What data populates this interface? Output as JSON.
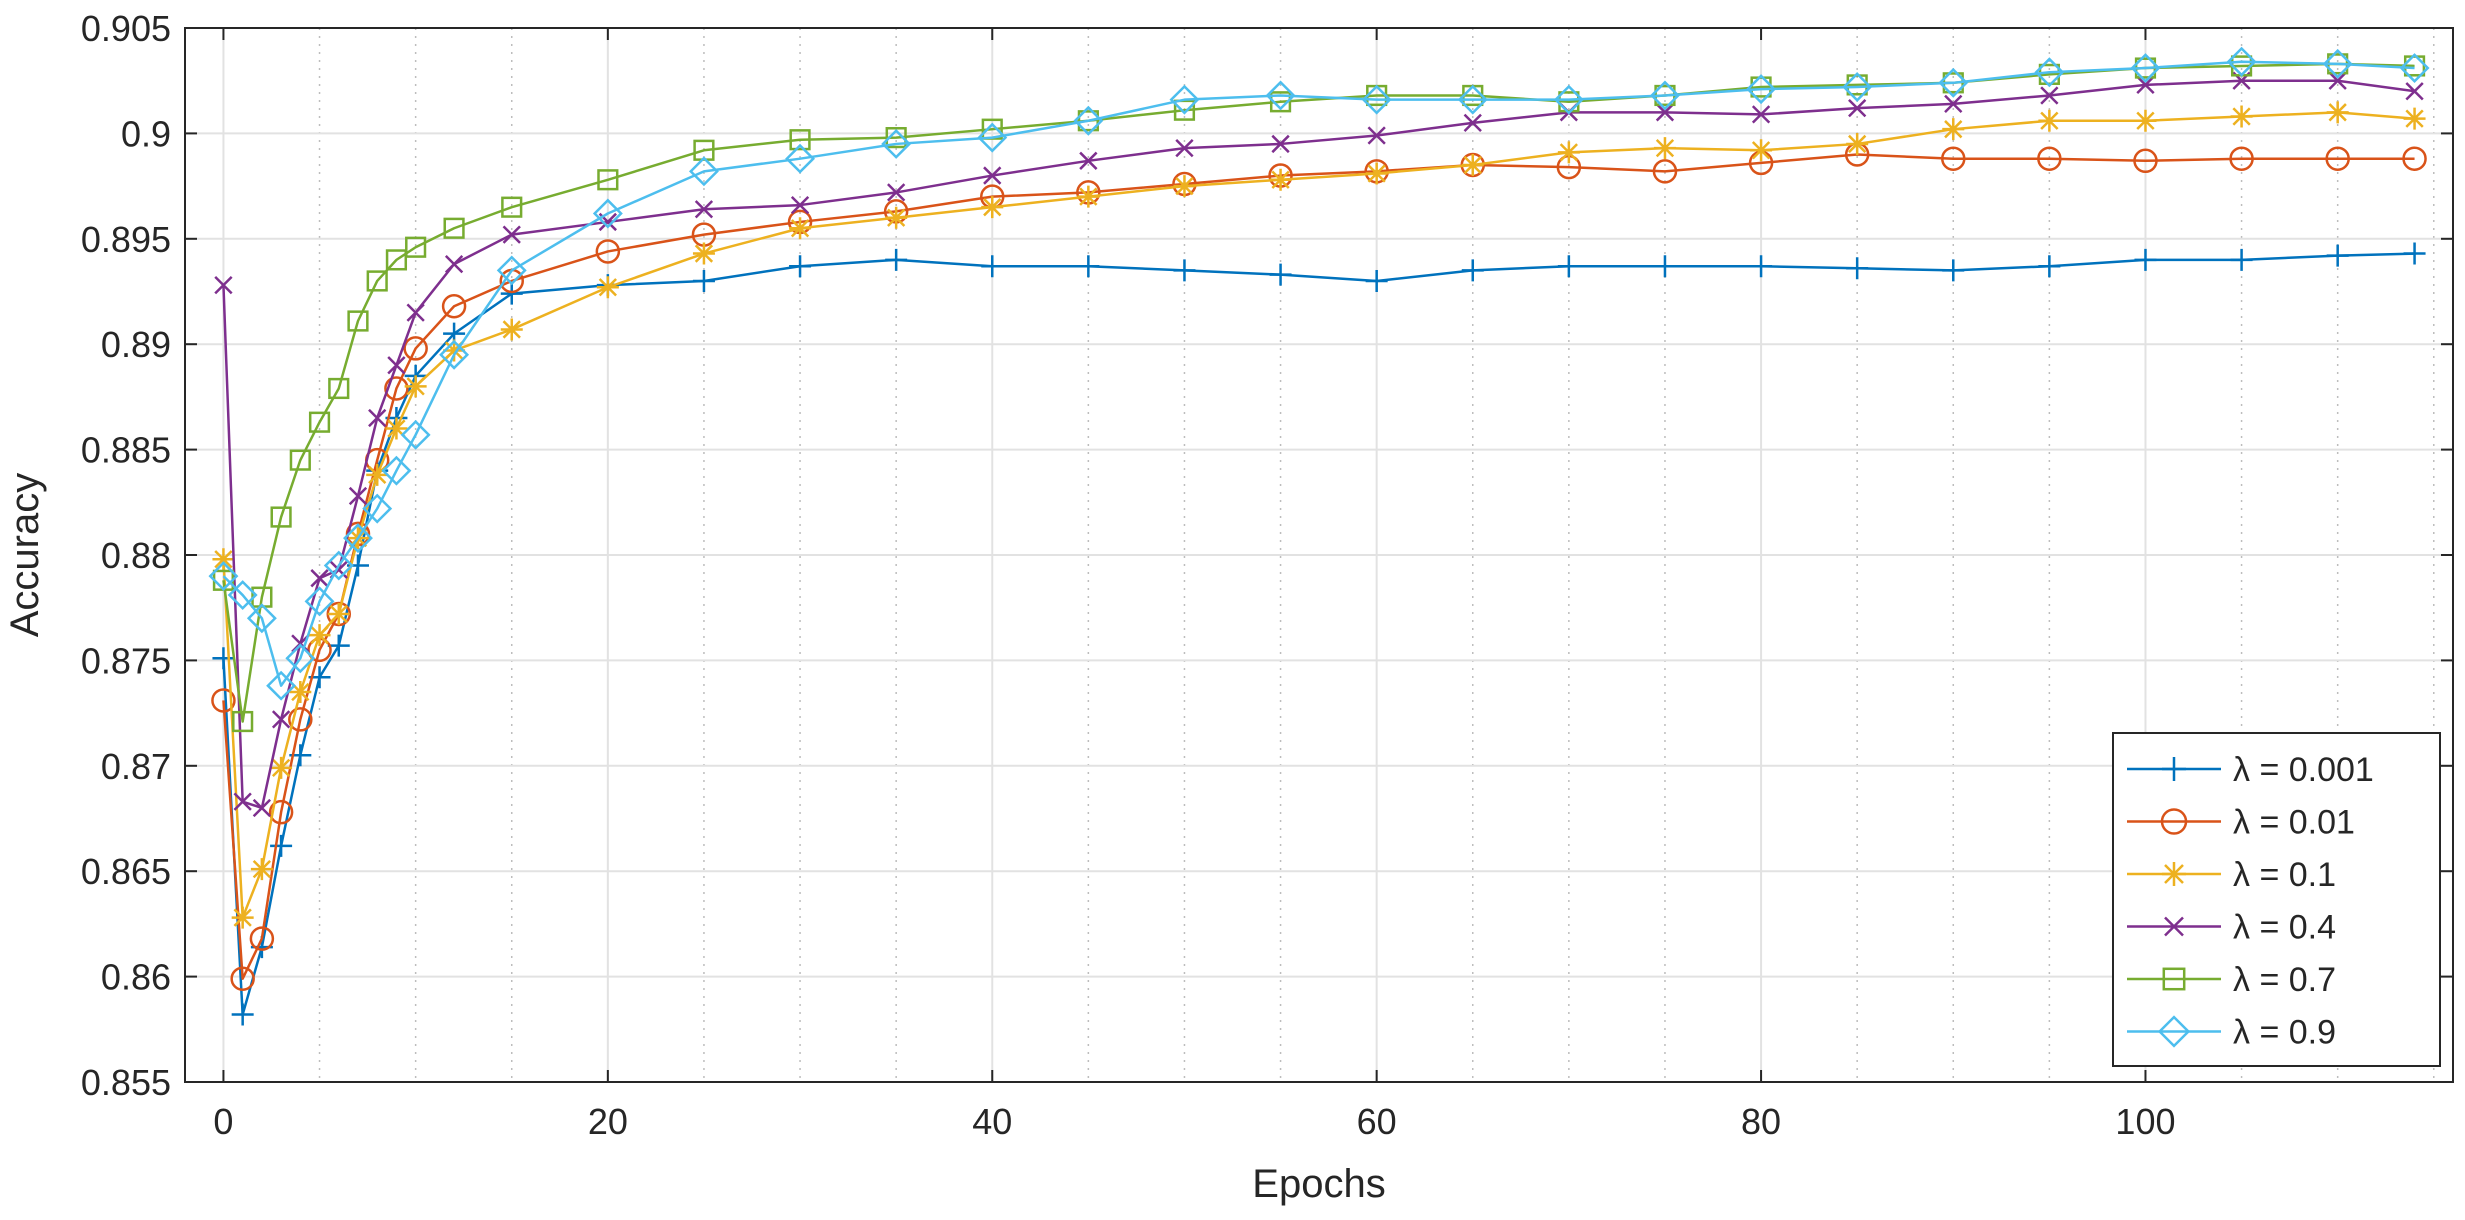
{
  "chart_data": {
    "type": "line",
    "title": "",
    "xlabel": "Epochs",
    "ylabel": "Accuracy",
    "xlim": [
      -2,
      116
    ],
    "ylim": [
      0.855,
      0.905
    ],
    "x_ticks": [
      0,
      20,
      40,
      60,
      80,
      100
    ],
    "x_tick_labels": [
      "0",
      "20",
      "40",
      "60",
      "80",
      "100"
    ],
    "y_ticks": [
      0.855,
      0.86,
      0.865,
      0.87,
      0.875,
      0.88,
      0.885,
      0.89,
      0.895,
      0.9,
      0.905
    ],
    "y_tick_labels": [
      "0.855",
      "0.86",
      "0.865",
      "0.87",
      "0.875",
      "0.88",
      "0.885",
      "0.89",
      "0.895",
      "0.9",
      "0.905"
    ],
    "x_minor_step": 5,
    "grid": true,
    "legend_position": "bottom-right",
    "x": [
      0,
      1,
      2,
      3,
      4,
      5,
      6,
      7,
      8,
      9,
      10,
      12,
      15,
      20,
      25,
      30,
      35,
      40,
      45,
      50,
      55,
      60,
      65,
      70,
      75,
      80,
      85,
      90,
      95,
      100,
      105,
      110,
      114
    ],
    "series": [
      {
        "name": "λ = 0.001",
        "marker": "plus",
        "color": "#0072BD",
        "values": [
          0.8751,
          0.8582,
          0.8614,
          0.8662,
          0.8705,
          0.8742,
          0.8757,
          0.8795,
          0.884,
          0.8865,
          0.8885,
          0.8905,
          0.8924,
          0.8928,
          0.893,
          0.8937,
          0.894,
          0.8937,
          0.8937,
          0.8935,
          0.8933,
          0.893,
          0.8935,
          0.8937,
          0.8937,
          0.8937,
          0.8936,
          0.8935,
          0.8937,
          0.894,
          0.894,
          0.8942,
          0.8943
        ]
      },
      {
        "name": "λ = 0.01",
        "marker": "circle",
        "color": "#D95319",
        "values": [
          0.8731,
          0.8599,
          0.8618,
          0.8678,
          0.8722,
          0.8755,
          0.8772,
          0.881,
          0.8845,
          0.8879,
          0.8898,
          0.8918,
          0.893,
          0.8944,
          0.8952,
          0.8958,
          0.8963,
          0.897,
          0.8972,
          0.8976,
          0.898,
          0.8982,
          0.8985,
          0.8984,
          0.8982,
          0.8986,
          0.899,
          0.8988,
          0.8988,
          0.8987,
          0.8988,
          0.8988,
          0.8988
        ]
      },
      {
        "name": "λ = 0.1",
        "marker": "asterisk",
        "color": "#EDB120",
        "values": [
          0.8798,
          0.8628,
          0.8651,
          0.8699,
          0.8735,
          0.8762,
          0.8772,
          0.8808,
          0.8838,
          0.886,
          0.888,
          0.8897,
          0.8907,
          0.8927,
          0.8943,
          0.8955,
          0.896,
          0.8965,
          0.897,
          0.8975,
          0.8978,
          0.8981,
          0.8985,
          0.8991,
          0.8993,
          0.8992,
          0.8995,
          0.9002,
          0.9006,
          0.9006,
          0.9008,
          0.901,
          0.9007
        ]
      },
      {
        "name": "λ = 0.4",
        "marker": "x",
        "color": "#7E2F8E",
        "values": [
          0.8928,
          0.8683,
          0.868,
          0.8722,
          0.8758,
          0.8789,
          0.8793,
          0.8828,
          0.8865,
          0.889,
          0.8915,
          0.8938,
          0.8952,
          0.8958,
          0.8964,
          0.8966,
          0.8972,
          0.898,
          0.8987,
          0.8993,
          0.8995,
          0.8999,
          0.9005,
          0.901,
          0.901,
          0.9009,
          0.9012,
          0.9014,
          0.9018,
          0.9023,
          0.9025,
          0.9025,
          0.902
        ]
      },
      {
        "name": "λ = 0.7",
        "marker": "square",
        "color": "#77AC30",
        "values": [
          0.8788,
          0.8721,
          0.878,
          0.8818,
          0.8845,
          0.8863,
          0.8879,
          0.8911,
          0.893,
          0.894,
          0.8946,
          0.8955,
          0.8965,
          0.8978,
          0.8992,
          0.8997,
          0.8998,
          0.9002,
          0.9006,
          0.9011,
          0.9015,
          0.9018,
          0.9018,
          0.9015,
          0.9018,
          0.9022,
          0.9023,
          0.9024,
          0.9028,
          0.9031,
          0.9032,
          0.9033,
          0.9032
        ]
      },
      {
        "name": "λ = 0.9",
        "marker": "diamond",
        "color": "#4DBEEE",
        "values": [
          0.879,
          0.8781,
          0.877,
          0.8738,
          0.8751,
          0.8778,
          0.8795,
          0.8808,
          0.8822,
          0.884,
          0.8857,
          0.8895,
          0.8935,
          0.8962,
          0.8982,
          0.8988,
          0.8995,
          0.8998,
          0.9006,
          0.9016,
          0.9018,
          0.9016,
          0.9016,
          0.9016,
          0.9018,
          0.9021,
          0.9022,
          0.9024,
          0.9029,
          0.9031,
          0.9034,
          0.9033,
          0.9031
        ]
      }
    ]
  }
}
